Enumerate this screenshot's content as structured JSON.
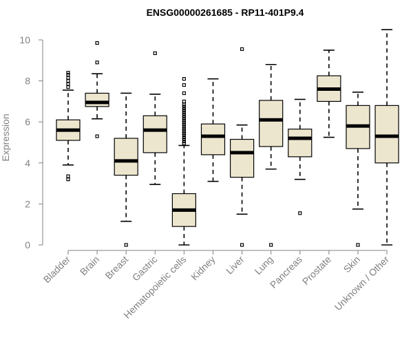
{
  "chart_data": {
    "type": "boxplot",
    "title": "ENSG00000261685 - RP11-401P9.4",
    "xlabel": "",
    "ylabel": "Expression",
    "ylim": [
      0,
      10.5
    ],
    "yticks": [
      0,
      2,
      4,
      6,
      8,
      10
    ],
    "grid": false,
    "box_fill": "#ede6cf",
    "box_stroke": "#000000",
    "axis_color": "#808080",
    "categories": [
      "Bladder",
      "Brain",
      "Breast",
      "Gastric",
      "Hematopoietic cells",
      "Kidney",
      "Liver",
      "Lung",
      "Pancreas",
      "Prostate",
      "Skin",
      "Unknown / Other"
    ],
    "boxes": [
      {
        "category": "Bladder",
        "whisker_low": 3.9,
        "q1": 5.1,
        "median": 5.6,
        "q3": 6.1,
        "whisker_high": 7.55,
        "outliers": [
          3.2,
          3.35,
          7.7,
          7.85,
          8.0,
          8.15,
          8.3,
          8.4
        ]
      },
      {
        "category": "Brain",
        "whisker_low": 6.15,
        "q1": 6.75,
        "median": 6.95,
        "q3": 7.4,
        "whisker_high": 8.35,
        "outliers": [
          5.3,
          8.9,
          9.85
        ]
      },
      {
        "category": "Breast",
        "whisker_low": 1.15,
        "q1": 3.4,
        "median": 4.1,
        "q3": 5.2,
        "whisker_high": 7.4,
        "outliers": [
          0.0
        ]
      },
      {
        "category": "Gastric",
        "whisker_low": 2.95,
        "q1": 4.5,
        "median": 5.6,
        "q3": 6.3,
        "whisker_high": 7.35,
        "outliers": [
          9.35
        ]
      },
      {
        "category": "Hematopoietic cells",
        "whisker_low": 0.0,
        "q1": 0.9,
        "median": 1.7,
        "q3": 2.5,
        "whisker_high": 4.85,
        "outliers": [
          4.95,
          5.05,
          5.15,
          5.25,
          5.35,
          5.45,
          5.55,
          5.65,
          5.75,
          5.85,
          5.95,
          6.05,
          6.15,
          6.25,
          6.35,
          6.45,
          6.55,
          6.65,
          6.75,
          6.85,
          7.0,
          7.4,
          7.8,
          8.1
        ]
      },
      {
        "category": "Kidney",
        "whisker_low": 3.1,
        "q1": 4.4,
        "median": 5.3,
        "q3": 5.9,
        "whisker_high": 8.1,
        "outliers": []
      },
      {
        "category": "Liver",
        "whisker_low": 1.5,
        "q1": 3.3,
        "median": 4.5,
        "q3": 5.15,
        "whisker_high": 5.85,
        "outliers": [
          0.0,
          9.55
        ]
      },
      {
        "category": "Lung",
        "whisker_low": 3.7,
        "q1": 4.8,
        "median": 6.1,
        "q3": 7.05,
        "whisker_high": 8.8,
        "outliers": [
          0.0
        ]
      },
      {
        "category": "Pancreas",
        "whisker_low": 3.2,
        "q1": 4.3,
        "median": 5.2,
        "q3": 5.65,
        "whisker_high": 7.1,
        "outliers": [
          1.55
        ]
      },
      {
        "category": "Prostate",
        "whisker_low": 5.25,
        "q1": 7.0,
        "median": 7.6,
        "q3": 8.25,
        "whisker_high": 9.5,
        "outliers": []
      },
      {
        "category": "Skin",
        "whisker_low": 1.75,
        "q1": 4.7,
        "median": 5.8,
        "q3": 6.8,
        "whisker_high": 7.45,
        "outliers": [
          0.0
        ]
      },
      {
        "category": "Unknown / Other",
        "whisker_low": 0.0,
        "q1": 4.0,
        "median": 5.3,
        "q3": 6.8,
        "whisker_high": 10.5,
        "outliers": []
      }
    ]
  }
}
